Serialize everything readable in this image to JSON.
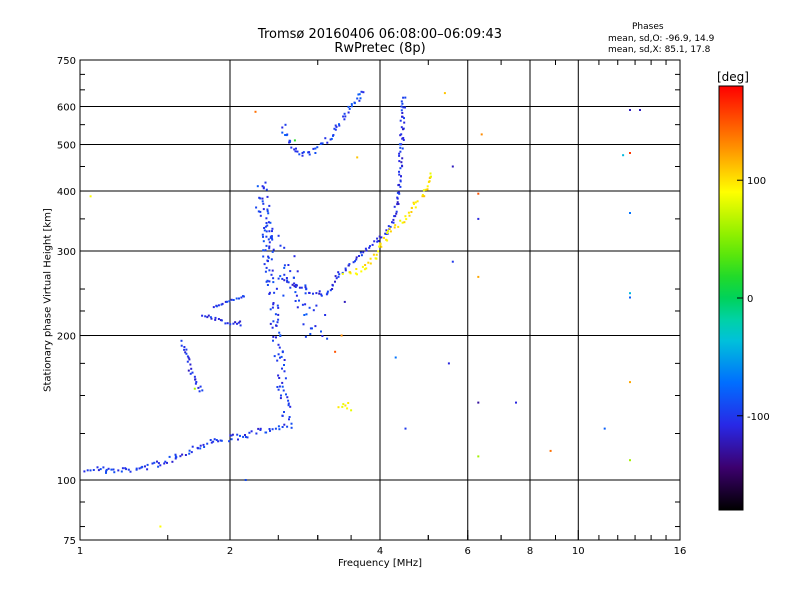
{
  "header": {
    "title": "Tromsø 20160406 06:08:00–06:09:43",
    "subtitle": "RwPretec (8p)",
    "stats_title": "Phases",
    "stats_o": "mean, sd,O: -96.9, 14.9",
    "stats_x": "mean, sd,X:  85.1, 17.8"
  },
  "colorbar": {
    "unit": "[deg]",
    "ticks": [
      {
        "value": 100,
        "label": "100"
      },
      {
        "value": 0,
        "label": "0"
      },
      {
        "value": -100,
        "label": "-100"
      }
    ],
    "range": [
      -180,
      180
    ]
  },
  "chart_data": {
    "type": "scatter",
    "xlabel": "Frequency [MHz]",
    "ylabel": "Stationary phase Virtual Height [km]",
    "xscale": "log",
    "yscale": "log",
    "xlim": [
      1,
      16
    ],
    "ylim": [
      75,
      750
    ],
    "xticks": [
      {
        "value": 1,
        "label": "1"
      },
      {
        "value": 2,
        "label": "2"
      },
      {
        "value": 4,
        "label": "4"
      },
      {
        "value": 6,
        "label": "6"
      },
      {
        "value": 8,
        "label": "8"
      },
      {
        "value": 10,
        "label": "10"
      },
      {
        "value": 16,
        "label": "16"
      }
    ],
    "xgrid": [
      2,
      4,
      6,
      8,
      10
    ],
    "yticks": [
      {
        "value": 75,
        "label": "75"
      },
      {
        "value": 100,
        "label": "100"
      },
      {
        "value": 200,
        "label": "200"
      },
      {
        "value": 300,
        "label": "300"
      },
      {
        "value": 400,
        "label": "400"
      },
      {
        "value": 500,
        "label": "500"
      },
      {
        "value": 600,
        "label": "600"
      },
      {
        "value": 750,
        "label": "750"
      }
    ],
    "ygrid": [
      100,
      200,
      300,
      400,
      500,
      600
    ],
    "grid": true,
    "series": [
      {
        "trace": [
          [
            1.03,
            106
          ],
          [
            1.08,
            106
          ],
          [
            1.13,
            105
          ],
          [
            1.2,
            105
          ],
          [
            1.28,
            106
          ],
          [
            1.36,
            107
          ],
          [
            1.44,
            109
          ],
          [
            1.52,
            111
          ],
          [
            1.6,
            114
          ],
          [
            1.68,
            117
          ],
          [
            1.76,
            119
          ],
          [
            1.84,
            121
          ],
          [
            1.92,
            122
          ],
          [
            2.0,
            123
          ],
          [
            2.1,
            124
          ],
          [
            2.2,
            125
          ],
          [
            2.3,
            127
          ],
          [
            2.4,
            128
          ],
          [
            2.5,
            130
          ],
          [
            2.6,
            132
          ]
        ],
        "phase": -100,
        "thickness": 6
      },
      {
        "trace": [
          [
            1.6,
            195
          ],
          [
            1.65,
            172
          ],
          [
            1.7,
            160
          ],
          [
            1.75,
            152
          ]
        ],
        "phase": -105,
        "thickness": 4
      },
      {
        "trace": [
          [
            1.75,
            222
          ],
          [
            1.85,
            218
          ],
          [
            1.95,
            214
          ],
          [
            2.05,
            213
          ],
          [
            2.12,
            214
          ]
        ],
        "phase": -105,
        "thickness": 3
      },
      {
        "trace": [
          [
            1.85,
            230
          ],
          [
            1.95,
            236
          ],
          [
            2.05,
            240
          ],
          [
            2.15,
            244
          ]
        ],
        "phase": -100,
        "thickness": 2
      },
      {
        "trace": [
          [
            2.3,
            360
          ],
          [
            2.35,
            340
          ],
          [
            2.4,
            320
          ],
          [
            2.45,
            305
          ],
          [
            2.5,
            290
          ],
          [
            2.55,
            280
          ],
          [
            2.6,
            268
          ],
          [
            2.65,
            258
          ],
          [
            2.7,
            248
          ],
          [
            2.75,
            240
          ],
          [
            2.8,
            232
          ],
          [
            2.85,
            225
          ],
          [
            2.9,
            218
          ],
          [
            2.95,
            212
          ],
          [
            3.0,
            205
          ],
          [
            3.05,
            200
          ]
        ],
        "phase": -95,
        "thickness": 22
      },
      {
        "trace": [
          [
            2.3,
            420
          ],
          [
            2.32,
            380
          ],
          [
            2.35,
            330
          ],
          [
            2.4,
            270
          ],
          [
            2.45,
            220
          ],
          [
            2.5,
            180
          ],
          [
            2.55,
            150
          ],
          [
            2.6,
            130
          ]
        ],
        "phase": -98,
        "thickness": 10
      },
      {
        "trace": [
          [
            2.5,
            265
          ],
          [
            2.7,
            255
          ],
          [
            2.9,
            248
          ],
          [
            3.1,
            245
          ],
          [
            3.2,
            255
          ],
          [
            3.3,
            270
          ],
          [
            3.5,
            285
          ],
          [
            3.7,
            300
          ],
          [
            3.9,
            315
          ],
          [
            4.1,
            330
          ],
          [
            4.2,
            345
          ],
          [
            4.3,
            370
          ],
          [
            4.35,
            420
          ],
          [
            4.4,
            500
          ],
          [
            4.42,
            560
          ],
          [
            4.44,
            640
          ]
        ],
        "phase": -105,
        "thickness": 4
      },
      {
        "trace": [
          [
            2.55,
            550
          ],
          [
            2.6,
            510
          ],
          [
            2.7,
            485
          ],
          [
            2.8,
            478
          ],
          [
            2.9,
            482
          ],
          [
            3.0,
            495
          ],
          [
            3.1,
            510
          ],
          [
            3.2,
            530
          ],
          [
            3.3,
            555
          ],
          [
            3.4,
            580
          ],
          [
            3.5,
            605
          ],
          [
            3.6,
            630
          ],
          [
            3.7,
            660
          ]
        ],
        "phase": -95,
        "thickness": 5
      },
      {
        "trace": [
          [
            3.4,
            270
          ],
          [
            3.55,
            272
          ],
          [
            3.7,
            278
          ],
          [
            3.85,
            290
          ],
          [
            3.95,
            305
          ],
          [
            4.05,
            318
          ],
          [
            4.15,
            330
          ],
          [
            4.25,
            340
          ],
          [
            4.4,
            350
          ],
          [
            4.55,
            360
          ],
          [
            4.7,
            375
          ],
          [
            4.85,
            395
          ],
          [
            4.95,
            415
          ],
          [
            5.0,
            440
          ]
        ],
        "phase": 95,
        "thickness": 6
      },
      {
        "trace": [
          [
            3.3,
            143
          ],
          [
            3.4,
            145
          ],
          [
            3.5,
            140
          ]
        ],
        "phase": 95,
        "thickness": 5
      }
    ],
    "scatter_points": [
      [
        1.05,
        390,
        90
      ],
      [
        1.45,
        80,
        90
      ],
      [
        2.25,
        585,
        140
      ],
      [
        2.7,
        510,
        20
      ],
      [
        3.6,
        470,
        110
      ],
      [
        5.4,
        640,
        110
      ],
      [
        5.6,
        450,
        -120
      ],
      [
        5.6,
        285,
        -100
      ],
      [
        5.5,
        175,
        -110
      ],
      [
        6.4,
        525,
        130
      ],
      [
        6.3,
        395,
        150
      ],
      [
        6.3,
        350,
        -110
      ],
      [
        6.3,
        265,
        120
      ],
      [
        6.3,
        145,
        -130
      ],
      [
        6.3,
        112,
        60
      ],
      [
        7.5,
        145,
        -110
      ],
      [
        8.8,
        115,
        140
      ],
      [
        11.3,
        128,
        -80
      ],
      [
        12.3,
        475,
        -40
      ],
      [
        12.7,
        590,
        -120
      ],
      [
        13.3,
        590,
        -120
      ],
      [
        12.7,
        480,
        160
      ],
      [
        12.7,
        360,
        -70
      ],
      [
        12.7,
        245,
        -40
      ],
      [
        12.7,
        240,
        -80
      ],
      [
        12.7,
        160,
        120
      ],
      [
        12.7,
        110,
        60
      ],
      [
        4.3,
        180,
        -70
      ],
      [
        4.5,
        128,
        -100
      ],
      [
        3.4,
        235,
        -120
      ],
      [
        3.35,
        200,
        130
      ],
      [
        3.25,
        185,
        150
      ],
      [
        1.7,
        155,
        60
      ],
      [
        2.15,
        100,
        -90
      ],
      [
        2.1,
        210,
        -100
      ]
    ]
  }
}
